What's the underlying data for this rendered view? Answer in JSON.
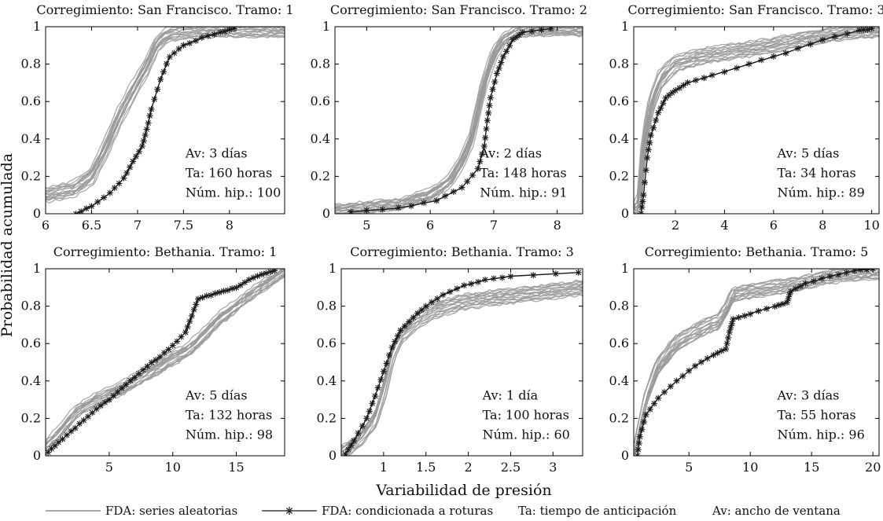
{
  "figure": {
    "ylabel": "Probabilidad acumulada",
    "xlabel": "Variabilidad de presión",
    "random_color": "#9a9a9a",
    "cond_color": "#1a1a1a"
  },
  "legend": {
    "random_label": "FDA: series aleatorias",
    "cond_label": "FDA: condicionada a roturas",
    "ta_def": "Ta: tiempo de anticipación",
    "av_def": "Av: ancho de ventana"
  },
  "chart_data": [
    {
      "type": "line",
      "title": "Corregimiento: San Francisco. Tramo: 1",
      "xlim": [
        6,
        8.6
      ],
      "ylim": [
        0,
        1
      ],
      "xticks": [
        6,
        6.5,
        7,
        7.5,
        8
      ],
      "xtick_labels": [
        "6",
        "6.5",
        "7",
        "7.5",
        "8"
      ],
      "yticks": [
        0,
        0.2,
        0.4,
        0.6,
        0.8,
        1
      ],
      "ytick_labels": [
        "0",
        "0.2",
        "0.4",
        "0.6",
        "0.8",
        "1"
      ],
      "annotations": [
        "Av: 3 días",
        "Ta: 160 horas",
        "Núm. hip.: 100"
      ],
      "series": [
        {
          "name": "FDA: series aleatorias",
          "x": [
            6,
            6.3,
            6.5,
            6.65,
            6.8,
            6.95,
            7.1,
            7.2,
            7.3,
            7.45,
            7.8,
            8.6
          ],
          "y": [
            0.1,
            0.13,
            0.2,
            0.35,
            0.52,
            0.66,
            0.79,
            0.9,
            0.95,
            0.97,
            0.98,
            0.98
          ],
          "spread": 0.05
        },
        {
          "name": "FDA: condicionada a roturas",
          "x": [
            6.33,
            6.5,
            6.7,
            6.85,
            6.95,
            7.05,
            7.1,
            7.15,
            7.25,
            7.35,
            7.5,
            7.7,
            7.9,
            8.05
          ],
          "y": [
            0,
            0.04,
            0.11,
            0.19,
            0.28,
            0.36,
            0.45,
            0.56,
            0.72,
            0.84,
            0.9,
            0.94,
            0.97,
            0.99
          ]
        }
      ]
    },
    {
      "type": "line",
      "title": "Corregimiento: San Francisco. Tramo: 2",
      "xlim": [
        4.5,
        8.4
      ],
      "ylim": [
        0,
        1
      ],
      "xticks": [
        5,
        6,
        7,
        8
      ],
      "xtick_labels": [
        "5",
        "6",
        "7",
        "8"
      ],
      "yticks": [
        0,
        0.2,
        0.4,
        0.6,
        0.8,
        1
      ],
      "ytick_labels": [
        "0",
        "0.2",
        "0.4",
        "0.6",
        "0.8",
        "1"
      ],
      "annotations": [
        "Av: 2 días",
        "Ta: 148 horas",
        "Núm. hip.: 91"
      ],
      "series": [
        {
          "name": "FDA: series aleatorias",
          "x": [
            4.5,
            5.5,
            6,
            6.3,
            6.5,
            6.65,
            6.75,
            6.85,
            7,
            7.15,
            7.35,
            7.6,
            8.4
          ],
          "y": [
            0.02,
            0.05,
            0.1,
            0.17,
            0.28,
            0.4,
            0.55,
            0.7,
            0.85,
            0.93,
            0.97,
            0.98,
            0.98
          ],
          "spread": 0.04
        },
        {
          "name": "FDA: condicionada a roturas",
          "x": [
            4.75,
            5.5,
            6.1,
            6.5,
            6.75,
            6.85,
            6.9,
            6.95,
            7.05,
            7.15,
            7.3,
            7.45,
            7.9
          ],
          "y": [
            0.01,
            0.03,
            0.07,
            0.14,
            0.24,
            0.36,
            0.5,
            0.62,
            0.75,
            0.84,
            0.93,
            0.97,
            0.99
          ]
        }
      ]
    },
    {
      "type": "line",
      "title": "Corregimiento: San Francisco. Tramo: 3",
      "xlim": [
        0.3,
        10.3
      ],
      "ylim": [
        0,
        1
      ],
      "xticks": [
        2,
        4,
        6,
        8,
        10
      ],
      "xtick_labels": [
        "2",
        "4",
        "6",
        "8",
        "10"
      ],
      "yticks": [
        0,
        0.2,
        0.4,
        0.6,
        0.8,
        1
      ],
      "ytick_labels": [
        "0",
        "0.2",
        "0.4",
        "0.6",
        "0.8",
        "1"
      ],
      "annotations": [
        "Av: 5 días",
        "Ta: 34 horas",
        "Núm. hip.: 89"
      ],
      "series": [
        {
          "name": "FDA: series aleatorias",
          "x": [
            0.5,
            0.7,
            1,
            1.4,
            2,
            3,
            4.5,
            6,
            7.5,
            9,
            10.3
          ],
          "y": [
            0.02,
            0.35,
            0.58,
            0.72,
            0.8,
            0.84,
            0.87,
            0.9,
            0.94,
            0.97,
            0.98
          ],
          "spread": 0.05
        },
        {
          "name": "FDA: condicionada a roturas",
          "x": [
            0.6,
            0.7,
            0.85,
            1,
            1.3,
            1.6,
            2,
            2.5,
            3.5,
            5,
            6.5,
            8,
            9.5,
            10
          ],
          "y": [
            0,
            0.1,
            0.3,
            0.42,
            0.54,
            0.62,
            0.66,
            0.7,
            0.74,
            0.8,
            0.86,
            0.93,
            0.98,
            0.99
          ]
        }
      ]
    },
    {
      "type": "line",
      "title": "Corregimiento: Bethania. Tramo: 1",
      "xlim": [
        0,
        18.8
      ],
      "ylim": [
        0,
        1
      ],
      "xticks": [
        5,
        10,
        15
      ],
      "xtick_labels": [
        "5",
        "10",
        "15"
      ],
      "yticks": [
        0,
        0.2,
        0.4,
        0.6,
        0.8,
        1
      ],
      "ytick_labels": [
        "0",
        "0.2",
        "0.4",
        "0.6",
        "0.8",
        "1"
      ],
      "annotations": [
        "Av: 5 días",
        "Ta: 132 horas",
        "Núm. hip.: 98"
      ],
      "series": [
        {
          "name": "FDA: series aleatorias",
          "x": [
            0,
            1,
            2.5,
            4,
            6,
            8,
            10,
            11.5,
            12.5,
            13.5,
            15,
            16.5,
            18,
            18.8
          ],
          "y": [
            0.05,
            0.12,
            0.24,
            0.3,
            0.36,
            0.44,
            0.52,
            0.58,
            0.65,
            0.72,
            0.8,
            0.88,
            0.95,
            0.99
          ],
          "spread": 0.035
        },
        {
          "name": "FDA: condicionada a roturas",
          "x": [
            0.2,
            1,
            2,
            3,
            4,
            5,
            6,
            7,
            8,
            9,
            10,
            11,
            11.5,
            12,
            13,
            14,
            15,
            16,
            17,
            18
          ],
          "y": [
            0.02,
            0.07,
            0.13,
            0.19,
            0.25,
            0.3,
            0.36,
            0.42,
            0.48,
            0.53,
            0.59,
            0.66,
            0.75,
            0.84,
            0.86,
            0.88,
            0.9,
            0.94,
            0.97,
            0.99
          ]
        }
      ]
    },
    {
      "type": "line",
      "title": "Corregimiento: Bethania. Tramo: 3",
      "xlim": [
        0.5,
        3.35
      ],
      "ylim": [
        0,
        1
      ],
      "xticks": [
        1,
        1.5,
        2,
        2.5,
        3
      ],
      "xtick_labels": [
        "1",
        "1.5",
        "2",
        "2.5",
        "3"
      ],
      "yticks": [
        0,
        0.2,
        0.4,
        0.6,
        0.8,
        1
      ],
      "ytick_labels": [
        "0",
        "0.2",
        "0.4",
        "0.6",
        "0.8",
        "1"
      ],
      "annotations": [
        "Av: 1 día",
        "Ta: 100 horas",
        "Núm. hip.: 60"
      ],
      "series": [
        {
          "name": "FDA: series aleatorias",
          "x": [
            0.5,
            0.7,
            0.9,
            1.0,
            1.1,
            1.2,
            1.4,
            1.6,
            1.9,
            2.2,
            2.6,
            3.0,
            3.35
          ],
          "y": [
            0.02,
            0.08,
            0.2,
            0.35,
            0.55,
            0.65,
            0.73,
            0.78,
            0.82,
            0.84,
            0.86,
            0.88,
            0.9
          ],
          "spread": 0.05
        },
        {
          "name": "FDA: condicionada a roturas",
          "x": [
            0.55,
            0.65,
            0.8,
            0.9,
            1.0,
            1.1,
            1.2,
            1.35,
            1.5,
            1.7,
            1.95,
            2.2,
            2.5,
            3.3
          ],
          "y": [
            0.01,
            0.08,
            0.2,
            0.32,
            0.45,
            0.58,
            0.67,
            0.74,
            0.8,
            0.86,
            0.91,
            0.94,
            0.96,
            0.98
          ]
        }
      ]
    },
    {
      "type": "line",
      "title": "Corregimiento: Bethania. Tramo: 5",
      "xlim": [
        0.5,
        20.5
      ],
      "ylim": [
        0,
        1
      ],
      "xticks": [
        5,
        10,
        15,
        20
      ],
      "xtick_labels": [
        "5",
        "10",
        "15",
        "20"
      ],
      "yticks": [
        0,
        0.2,
        0.4,
        0.6,
        0.8,
        1
      ],
      "ytick_labels": [
        "0",
        "0.2",
        "0.4",
        "0.6",
        "0.8",
        "1"
      ],
      "annotations": [
        "Av: 3 días",
        "Ta: 55 horas",
        "Núm. hip.: 96"
      ],
      "series": [
        {
          "name": "FDA: series aleatorias",
          "x": [
            0.6,
            1,
            1.5,
            2.5,
            4,
            6,
            7.5,
            8.2,
            8.6,
            10,
            12,
            14,
            16,
            18,
            20.5
          ],
          "y": [
            0.01,
            0.15,
            0.3,
            0.48,
            0.6,
            0.68,
            0.72,
            0.8,
            0.86,
            0.88,
            0.9,
            0.92,
            0.95,
            0.97,
            0.98
          ],
          "spread": 0.05
        },
        {
          "name": "FDA: condicionada a roturas",
          "x": [
            0.8,
            1,
            1.5,
            2.5,
            4,
            5.5,
            7,
            8,
            8.3,
            8.6,
            10,
            12,
            13,
            13.3,
            14.5,
            16.5,
            18.5,
            20
          ],
          "y": [
            0,
            0.1,
            0.22,
            0.31,
            0.4,
            0.48,
            0.54,
            0.57,
            0.66,
            0.73,
            0.76,
            0.8,
            0.82,
            0.88,
            0.92,
            0.96,
            0.99,
            1.0
          ]
        }
      ]
    }
  ]
}
